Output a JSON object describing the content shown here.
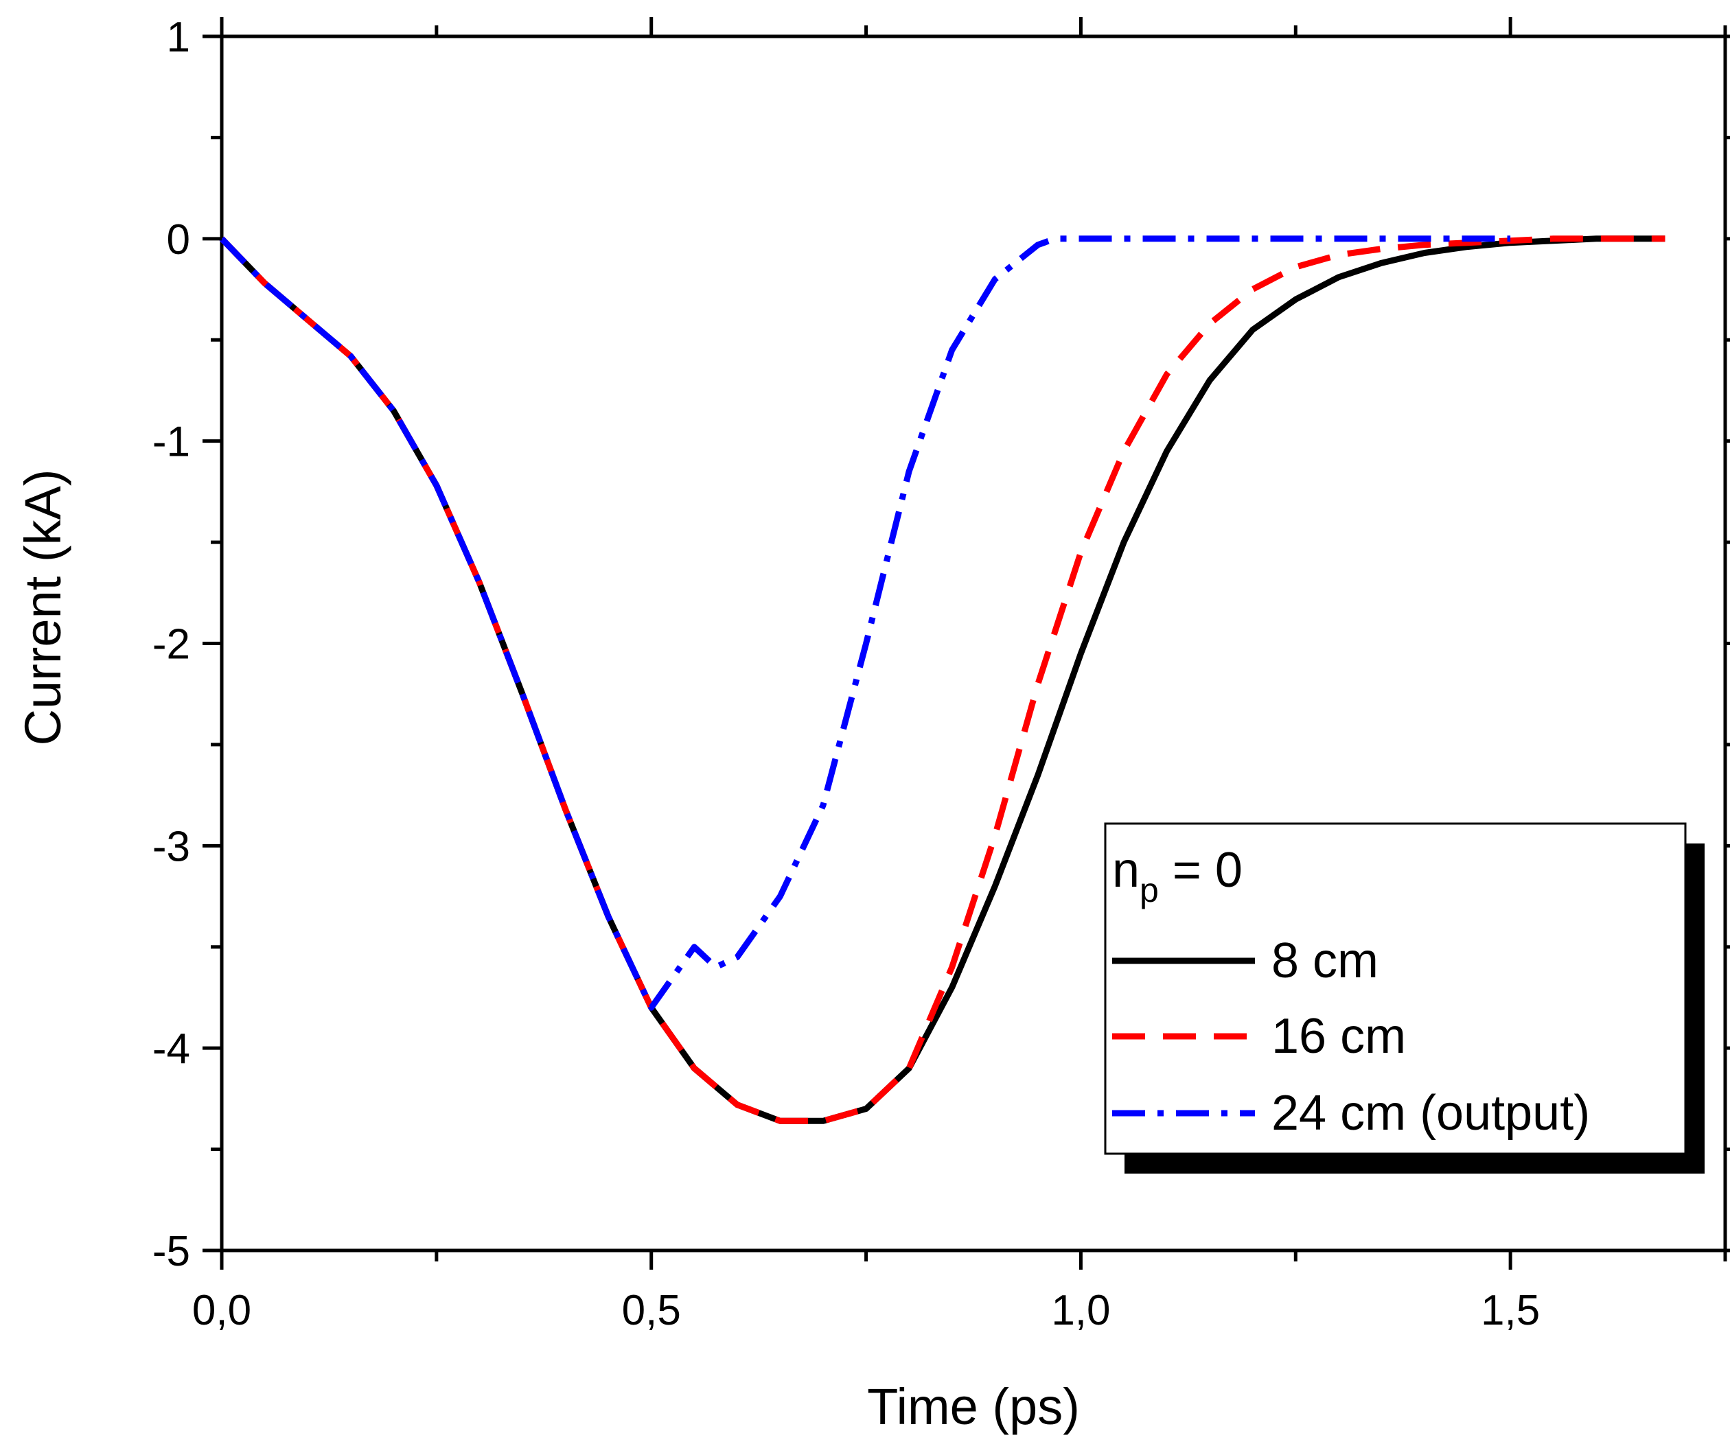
{
  "chart_data": {
    "type": "line",
    "title": "",
    "xlabel": "Time (ps)",
    "ylabel": "Current (kA)",
    "xlim": [
      0,
      1.75
    ],
    "ylim": [
      -5,
      1
    ],
    "xticks": [
      0,
      0.5,
      1.0,
      1.5
    ],
    "xtick_labels": [
      "0,0",
      "0,5",
      "1,0",
      "1,5"
    ],
    "yticks": [
      1,
      0,
      -1,
      -2,
      -3,
      -4,
      -5
    ],
    "ytick_labels": [
      "1",
      "0",
      "-1",
      "-2",
      "-3",
      "-4",
      "-5"
    ],
    "legend": {
      "title_main": "n",
      "title_sub": "p",
      "title_rest": " = 0",
      "position": "bottom-right"
    },
    "series": [
      {
        "name": "8 cm",
        "color": "#000000",
        "style": "solid",
        "x": [
          0,
          0.05,
          0.1,
          0.15,
          0.2,
          0.25,
          0.3,
          0.35,
          0.4,
          0.45,
          0.5,
          0.55,
          0.6,
          0.65,
          0.7,
          0.75,
          0.8,
          0.85,
          0.9,
          0.95,
          1.0,
          1.05,
          1.1,
          1.15,
          1.2,
          1.25,
          1.3,
          1.35,
          1.4,
          1.45,
          1.5,
          1.55,
          1.6,
          1.65,
          1.68
        ],
        "values": [
          0,
          -0.22,
          -0.4,
          -0.58,
          -0.85,
          -1.22,
          -1.7,
          -2.25,
          -2.82,
          -3.35,
          -3.8,
          -4.1,
          -4.28,
          -4.36,
          -4.36,
          -4.3,
          -4.1,
          -3.7,
          -3.2,
          -2.65,
          -2.05,
          -1.5,
          -1.05,
          -0.7,
          -0.45,
          -0.3,
          -0.19,
          -0.12,
          -0.07,
          -0.04,
          -0.02,
          -0.01,
          0,
          0,
          0
        ]
      },
      {
        "name": "16 cm",
        "color": "#ff0000",
        "style": "dashed",
        "x": [
          0,
          0.05,
          0.1,
          0.15,
          0.2,
          0.25,
          0.3,
          0.35,
          0.4,
          0.45,
          0.5,
          0.55,
          0.6,
          0.65,
          0.7,
          0.75,
          0.8,
          0.85,
          0.9,
          0.95,
          1.0,
          1.05,
          1.1,
          1.15,
          1.2,
          1.25,
          1.3,
          1.35,
          1.4,
          1.45,
          1.5,
          1.55,
          1.6,
          1.65,
          1.68
        ],
        "values": [
          0,
          -0.22,
          -0.4,
          -0.58,
          -0.85,
          -1.22,
          -1.7,
          -2.25,
          -2.82,
          -3.35,
          -3.8,
          -4.1,
          -4.28,
          -4.36,
          -4.36,
          -4.3,
          -4.1,
          -3.6,
          -2.95,
          -2.2,
          -1.55,
          -1.05,
          -0.67,
          -0.42,
          -0.25,
          -0.14,
          -0.08,
          -0.05,
          -0.03,
          -0.02,
          -0.01,
          0,
          0,
          0,
          0
        ]
      },
      {
        "name": "24 cm (output)",
        "color": "#0000ff",
        "style": "dashdot",
        "x": [
          0,
          0.05,
          0.1,
          0.15,
          0.2,
          0.25,
          0.3,
          0.35,
          0.4,
          0.45,
          0.5,
          0.55,
          0.575,
          0.6,
          0.65,
          0.7,
          0.75,
          0.8,
          0.85,
          0.9,
          0.95,
          0.97,
          1.0,
          1.1,
          1.2,
          1.3,
          1.4,
          1.5
        ],
        "values": [
          0,
          -0.22,
          -0.4,
          -0.58,
          -0.85,
          -1.22,
          -1.7,
          -2.25,
          -2.82,
          -3.35,
          -3.8,
          -3.5,
          -3.6,
          -3.55,
          -3.25,
          -2.8,
          -2.0,
          -1.15,
          -0.55,
          -0.2,
          -0.03,
          0,
          0,
          0,
          0,
          0,
          0,
          0
        ]
      }
    ]
  }
}
